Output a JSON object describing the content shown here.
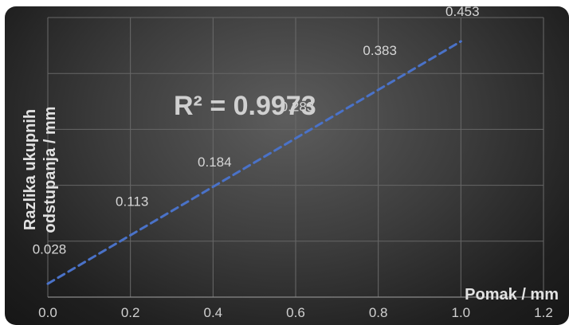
{
  "chart_data": {
    "type": "line",
    "xlabel": "Pomak / mm",
    "ylabel_lines": [
      "Razlika ukupnih",
      "odstupanja / mm"
    ],
    "xlim": [
      0,
      1.2
    ],
    "ylim": [
      0,
      0.5
    ],
    "x_ticks": [
      "0.0",
      "0.2",
      "0.4",
      "0.6",
      "0.8",
      "1.0",
      "1.2"
    ],
    "grid": true,
    "trendline": {
      "r2_label": "R² = 0.9973",
      "style": "dashed",
      "color": "#4a72c8"
    },
    "series": [
      {
        "x": [
          0.0,
          0.2,
          0.4,
          0.6,
          0.8,
          1.0
        ],
        "values": [
          0.028,
          0.113,
          0.184,
          0.283,
          0.383,
          0.453
        ],
        "labels": [
          "0.028",
          "0.113",
          "0.184",
          "0.283",
          "0.383",
          "0.453"
        ],
        "color": "#4a72c8"
      }
    ]
  }
}
